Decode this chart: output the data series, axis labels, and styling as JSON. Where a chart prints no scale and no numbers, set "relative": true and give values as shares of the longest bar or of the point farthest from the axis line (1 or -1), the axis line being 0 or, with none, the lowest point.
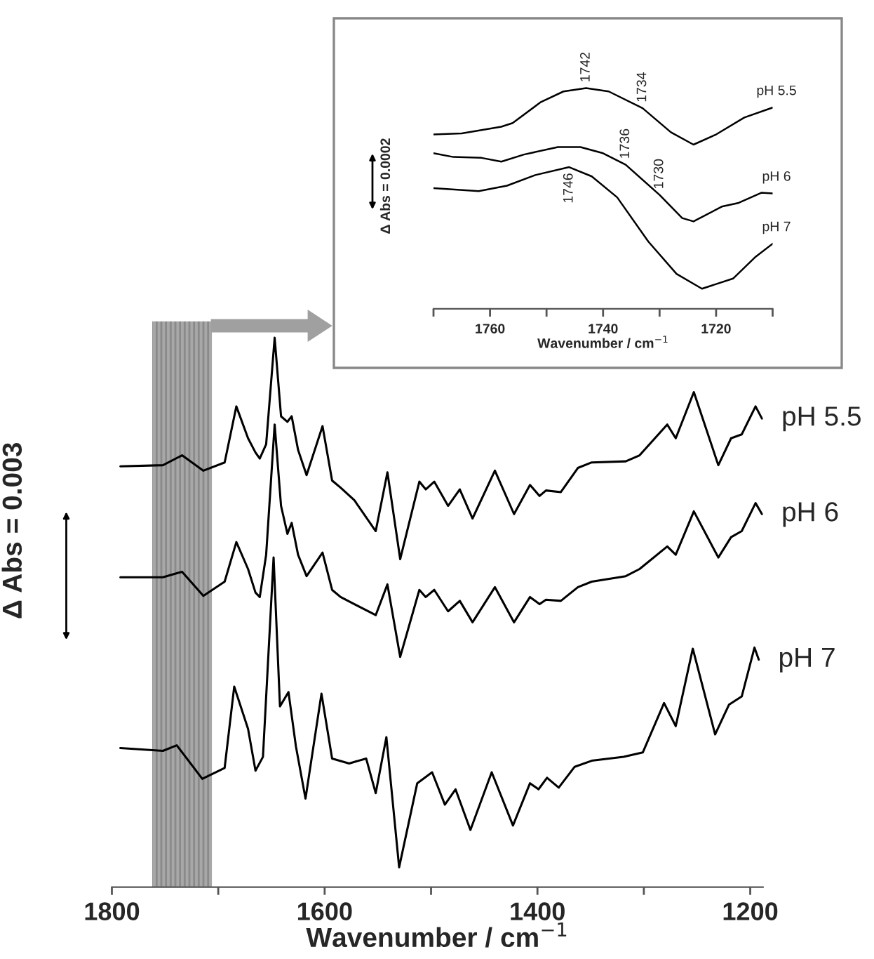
{
  "chart_data": [
    {
      "type": "line",
      "relative": true,
      "xlabel": "Wavenumber / cm$^{−1}$",
      "ylabel": "Δ Abs = 0.003",
      "tick_labels": "x",
      "xlim": [
        1800,
        1188
      ],
      "xticks": [
        1800,
        {
          "value": 1700,
          "label": null
        },
        1600,
        {
          "value": 1500,
          "label": null
        },
        1400,
        {
          "value": 1300,
          "label": null
        },
        1200
      ],
      "bands": [
        {
          "axis": "x",
          "from": 1762,
          "to": 1706,
          "color": "#a8a8a8"
        }
      ],
      "series": [
        {
          "name": "pH 5.5",
          "color": "#000000",
          "x": [
            1792,
            1752,
            1734,
            1714,
            1694,
            1683,
            1672,
            1665,
            1661,
            1655,
            1647,
            1641,
            1635,
            1631,
            1625,
            1617,
            1602,
            1593,
            1585,
            1572,
            1552,
            1541,
            1529,
            1511,
            1505,
            1497,
            1484,
            1473,
            1461,
            1440,
            1422,
            1407,
            1398,
            1392,
            1378,
            1362,
            1349,
            1317,
            1304,
            1278,
            1270,
            1253,
            1230,
            1218,
            1208,
            1195,
            1189
          ],
          "values": [
            0.766,
            0.768,
            0.786,
            0.758,
            0.773,
            0.875,
            0.817,
            0.791,
            0.78,
            0.806,
            1.0,
            0.857,
            0.847,
            0.857,
            0.796,
            0.75,
            0.839,
            0.74,
            0.727,
            0.704,
            0.648,
            0.755,
            0.597,
            0.738,
            0.724,
            0.738,
            0.694,
            0.724,
            0.671,
            0.758,
            0.679,
            0.732,
            0.712,
            0.722,
            0.719,
            0.763,
            0.773,
            0.775,
            0.786,
            0.842,
            0.817,
            0.901,
            0.768,
            0.817,
            0.824,
            0.875,
            0.853
          ]
        },
        {
          "name": "pH 6",
          "color": "#000000",
          "x": [
            1792,
            1752,
            1734,
            1714,
            1694,
            1683,
            1672,
            1665,
            1661,
            1655,
            1647,
            1641,
            1635,
            1631,
            1625,
            1617,
            1602,
            1593,
            1585,
            1572,
            1552,
            1541,
            1529,
            1511,
            1505,
            1497,
            1484,
            1473,
            1461,
            1440,
            1422,
            1407,
            1398,
            1392,
            1378,
            1362,
            1349,
            1317,
            1304,
            1278,
            1270,
            1253,
            1230,
            1218,
            1208,
            1195,
            1189
          ],
          "values": [
            0.564,
            0.564,
            0.574,
            0.53,
            0.556,
            0.628,
            0.579,
            0.536,
            0.528,
            0.605,
            0.842,
            0.694,
            0.643,
            0.663,
            0.605,
            0.566,
            0.609,
            0.541,
            0.528,
            0.515,
            0.495,
            0.551,
            0.419,
            0.541,
            0.528,
            0.541,
            0.502,
            0.521,
            0.482,
            0.546,
            0.482,
            0.528,
            0.515,
            0.523,
            0.521,
            0.546,
            0.556,
            0.566,
            0.579,
            0.62,
            0.605,
            0.684,
            0.6,
            0.637,
            0.648,
            0.699,
            0.679
          ]
        },
        {
          "name": "pH 7",
          "color": "#000000",
          "x": [
            1792,
            1752,
            1739,
            1715,
            1694,
            1685,
            1672,
            1665,
            1658,
            1648,
            1642,
            1634,
            1627,
            1618,
            1603,
            1593,
            1577,
            1561,
            1552,
            1542,
            1530,
            1513,
            1499,
            1487,
            1477,
            1463,
            1443,
            1423,
            1407,
            1399,
            1391,
            1380,
            1365,
            1349,
            1319,
            1301,
            1281,
            1270,
            1254,
            1233,
            1220,
            1208,
            1196,
            1192
          ],
          "values": [
            0.253,
            0.248,
            0.258,
            0.197,
            0.217,
            0.365,
            0.288,
            0.212,
            0.237,
            0.6,
            0.329,
            0.355,
            0.256,
            0.161,
            0.352,
            0.234,
            0.225,
            0.234,
            0.171,
            0.273,
            0.036,
            0.189,
            0.209,
            0.15,
            0.178,
            0.104,
            0.209,
            0.112,
            0.189,
            0.178,
            0.199,
            0.181,
            0.219,
            0.23,
            0.237,
            0.245,
            0.335,
            0.293,
            0.434,
            0.278,
            0.332,
            0.347,
            0.436,
            0.414
          ]
        }
      ]
    },
    {
      "type": "line",
      "relative": true,
      "xlabel": "Wavenumber / cm$^{−1}$",
      "ylabel": "Δ Abs = 0.0002",
      "tick_labels": "x",
      "xlim": [
        1770,
        1710
      ],
      "xticks": [
        {
          "value": 1770,
          "label": null
        },
        1760,
        {
          "value": 1750,
          "label": null
        },
        1740,
        {
          "value": 1730,
          "label": null
        },
        1720,
        {
          "value": 1710,
          "label": null
        }
      ],
      "annotations": [
        {
          "text": "1742",
          "x": 1743,
          "y": 1.0
        },
        {
          "text": "1734",
          "x": 1733,
          "y": 0.909
        },
        {
          "text": "1736",
          "x": 1736,
          "y": 0.653
        },
        {
          "text": "1730",
          "x": 1730,
          "y": 0.516
        },
        {
          "text": "1746",
          "x": 1746,
          "y": 0.642
        }
      ],
      "series": [
        {
          "name": "pH 5.5",
          "color": "#000000",
          "x": [
            1770,
            1765,
            1758,
            1756,
            1751,
            1747,
            1743,
            1739,
            1733,
            1728,
            1724,
            1720,
            1715,
            1710
          ],
          "values": [
            0.79,
            0.795,
            0.825,
            0.842,
            0.937,
            0.985,
            1.0,
            0.985,
            0.909,
            0.8,
            0.744,
            0.79,
            0.867,
            0.912
          ]
        },
        {
          "name": "pH 6",
          "color": "#000000",
          "x": [
            1770,
            1766.5,
            1761.5,
            1758,
            1754,
            1748,
            1744,
            1740,
            1736,
            1730,
            1726,
            1724,
            1719,
            1716,
            1712,
            1710
          ],
          "values": [
            0.705,
            0.688,
            0.684,
            0.667,
            0.699,
            0.733,
            0.733,
            0.705,
            0.653,
            0.516,
            0.411,
            0.396,
            0.463,
            0.48,
            0.526,
            0.523
          ]
        },
        {
          "name": "pH 7",
          "color": "#000000",
          "x": [
            1770,
            1762,
            1757,
            1752,
            1746,
            1742,
            1737.5,
            1732,
            1727,
            1722.5,
            1717,
            1713,
            1710
          ],
          "values": [
            0.547,
            0.533,
            0.558,
            0.606,
            0.642,
            0.6,
            0.505,
            0.305,
            0.158,
            0.091,
            0.137,
            0.236,
            0.295
          ]
        }
      ]
    }
  ]
}
